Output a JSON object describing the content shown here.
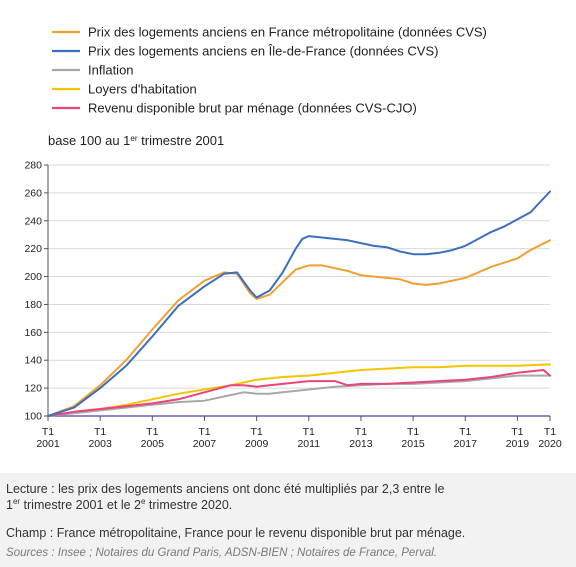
{
  "chart_data": {
    "type": "line",
    "subtitle_prefix": "base 100 au 1",
    "subtitle_sup": "er",
    "subtitle_suffix": " trimestre 2001",
    "ylim": [
      100,
      280
    ],
    "yticks": [
      100,
      120,
      140,
      160,
      180,
      200,
      220,
      240,
      260,
      280
    ],
    "xlim": [
      2001,
      2020.25
    ],
    "xticks": [
      {
        "top": "T1",
        "bottom": "2001",
        "x": 2001
      },
      {
        "top": "T1",
        "bottom": "2003",
        "x": 2003
      },
      {
        "top": "T1",
        "bottom": "2005",
        "x": 2005
      },
      {
        "top": "T1",
        "bottom": "2007",
        "x": 2007
      },
      {
        "top": "T1",
        "bottom": "2009",
        "x": 2009
      },
      {
        "top": "T1",
        "bottom": "2011",
        "x": 2011
      },
      {
        "top": "T1",
        "bottom": "2013",
        "x": 2013
      },
      {
        "top": "T1",
        "bottom": "2015",
        "x": 2015
      },
      {
        "top": "T1",
        "bottom": "2017",
        "x": 2017
      },
      {
        "top": "T1",
        "bottom": "2019",
        "x": 2019
      },
      {
        "top": "T1",
        "bottom": "2020",
        "x": 2020.25
      }
    ],
    "legend_position": "top-left",
    "series": [
      {
        "name": "Prix des logements anciens en France métropolitaine (données CVS)",
        "color": "#f0a030",
        "points": [
          [
            2001,
            100
          ],
          [
            2002,
            107
          ],
          [
            2003,
            122
          ],
          [
            2004,
            140
          ],
          [
            2005,
            162
          ],
          [
            2006,
            183
          ],
          [
            2007,
            197
          ],
          [
            2007.75,
            203
          ],
          [
            2008.25,
            202
          ],
          [
            2008.75,
            188
          ],
          [
            2009,
            184
          ],
          [
            2009.5,
            187
          ],
          [
            2010,
            196
          ],
          [
            2010.5,
            205
          ],
          [
            2011,
            208
          ],
          [
            2011.5,
            208
          ],
          [
            2012,
            206
          ],
          [
            2012.5,
            204
          ],
          [
            2013,
            201
          ],
          [
            2013.5,
            200
          ],
          [
            2014,
            199
          ],
          [
            2014.5,
            198
          ],
          [
            2015,
            195
          ],
          [
            2015.5,
            194
          ],
          [
            2016,
            195
          ],
          [
            2016.5,
            197
          ],
          [
            2017,
            199
          ],
          [
            2017.5,
            203
          ],
          [
            2018,
            207
          ],
          [
            2018.5,
            210
          ],
          [
            2019,
            213
          ],
          [
            2019.5,
            219
          ],
          [
            2020.25,
            226
          ]
        ]
      },
      {
        "name": "Prix des logements anciens en Île-de-France (données CVS)",
        "color": "#3a6fbf",
        "points": [
          [
            2001,
            100
          ],
          [
            2002,
            106
          ],
          [
            2003,
            120
          ],
          [
            2004,
            136
          ],
          [
            2005,
            157
          ],
          [
            2006,
            179
          ],
          [
            2007,
            193
          ],
          [
            2007.75,
            202
          ],
          [
            2008.25,
            203
          ],
          [
            2008.75,
            190
          ],
          [
            2009,
            185
          ],
          [
            2009.5,
            190
          ],
          [
            2010,
            203
          ],
          [
            2010.5,
            220
          ],
          [
            2010.75,
            227
          ],
          [
            2011,
            229
          ],
          [
            2011.5,
            228
          ],
          [
            2012,
            227
          ],
          [
            2012.5,
            226
          ],
          [
            2013,
            224
          ],
          [
            2013.5,
            222
          ],
          [
            2014,
            221
          ],
          [
            2014.5,
            218
          ],
          [
            2015,
            216
          ],
          [
            2015.5,
            216
          ],
          [
            2016,
            217
          ],
          [
            2016.5,
            219
          ],
          [
            2017,
            222
          ],
          [
            2017.5,
            227
          ],
          [
            2018,
            232
          ],
          [
            2018.5,
            236
          ],
          [
            2019,
            241
          ],
          [
            2019.5,
            246
          ],
          [
            2020.25,
            261
          ]
        ]
      },
      {
        "name": "Inflation",
        "color": "#a8a8a8",
        "points": [
          [
            2001,
            100
          ],
          [
            2002,
            102
          ],
          [
            2003,
            104
          ],
          [
            2004,
            106
          ],
          [
            2005,
            108
          ],
          [
            2006,
            110
          ],
          [
            2007,
            111
          ],
          [
            2008,
            115
          ],
          [
            2008.5,
            117
          ],
          [
            2009,
            116
          ],
          [
            2009.5,
            116
          ],
          [
            2010,
            117
          ],
          [
            2011,
            119
          ],
          [
            2012,
            121
          ],
          [
            2013,
            122
          ],
          [
            2014,
            123
          ],
          [
            2015,
            123
          ],
          [
            2016,
            124
          ],
          [
            2017,
            125
          ],
          [
            2018,
            127
          ],
          [
            2019,
            129
          ],
          [
            2020.25,
            129
          ]
        ]
      },
      {
        "name": "Loyers d'habitation",
        "color": "#f5c400",
        "points": [
          [
            2001,
            100
          ],
          [
            2002,
            103
          ],
          [
            2003,
            105
          ],
          [
            2004,
            108
          ],
          [
            2005,
            112
          ],
          [
            2006,
            116
          ],
          [
            2007,
            119
          ],
          [
            2008,
            122
          ],
          [
            2009,
            126
          ],
          [
            2010,
            128
          ],
          [
            2011,
            129
          ],
          [
            2012,
            131
          ],
          [
            2013,
            133
          ],
          [
            2014,
            134
          ],
          [
            2015,
            135
          ],
          [
            2016,
            135
          ],
          [
            2017,
            136
          ],
          [
            2018,
            136
          ],
          [
            2019,
            136
          ],
          [
            2020.25,
            137
          ]
        ]
      },
      {
        "name": "Revenu disponible brut par ménage (données CVS-CJO)",
        "color": "#e8457c",
        "points": [
          [
            2001,
            100
          ],
          [
            2002,
            103
          ],
          [
            2003,
            105
          ],
          [
            2004,
            107
          ],
          [
            2005,
            109
          ],
          [
            2006,
            112
          ],
          [
            2007,
            117
          ],
          [
            2008,
            122
          ],
          [
            2008.5,
            122
          ],
          [
            2009,
            121
          ],
          [
            2009.5,
            122
          ],
          [
            2010,
            123
          ],
          [
            2011,
            125
          ],
          [
            2012,
            125
          ],
          [
            2012.5,
            122
          ],
          [
            2013,
            123
          ],
          [
            2014,
            123
          ],
          [
            2015,
            124
          ],
          [
            2016,
            125
          ],
          [
            2017,
            126
          ],
          [
            2018,
            128
          ],
          [
            2019,
            131
          ],
          [
            2020,
            133
          ],
          [
            2020.25,
            129
          ]
        ]
      }
    ]
  },
  "footer": {
    "line1": "Lecture : les prix des logements anciens ont donc été multipliés par 2,3 entre le",
    "line2_a": "1",
    "line2_sup1": "er",
    "line2_b": " trimestre 2001 et le 2",
    "line2_sup2": "e",
    "line2_c": " trimestre 2020.",
    "line3": "Champ : France métropolitaine, France pour le revenu disponible brut par ménage.",
    "sources": "Sources : Insee ; Notaires du Grand Paris, ADSN-BIEN ; Notaires de France, Perval."
  }
}
